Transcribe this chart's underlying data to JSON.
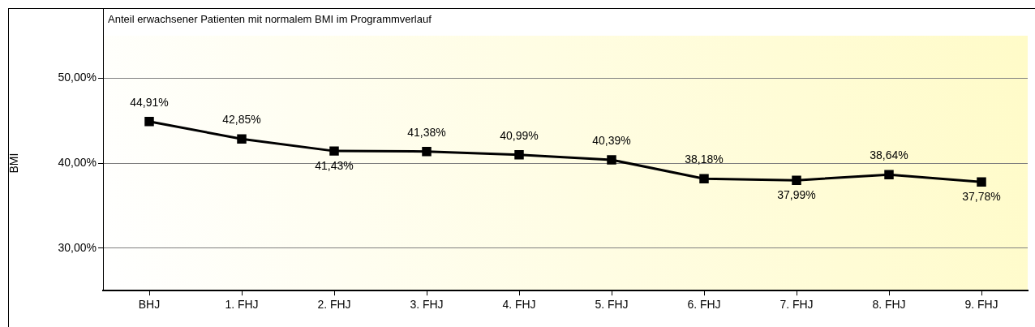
{
  "chart_data": {
    "type": "line",
    "title": "Anteil erwachsener Patienten mit normalem BMI im Programmverlauf",
    "ylabel": "BMI",
    "categories": [
      "BHJ",
      "1. FHJ",
      "2. FHJ",
      "3. FHJ",
      "4. FHJ",
      "5. FHJ",
      "6. FHJ",
      "7. FHJ",
      "8. FHJ",
      "9. FHJ"
    ],
    "series": [
      {
        "color": "#000000",
        "values": [
          44.91,
          42.85,
          41.43,
          41.38,
          40.99,
          40.39,
          38.18,
          37.99,
          38.64,
          37.78
        ],
        "value_labels": [
          "44,91%",
          "42,85%",
          "41,43%",
          "41,38%",
          "40,99%",
          "40,39%",
          "38,18%",
          "37,99%",
          "38,64%",
          "37,78%"
        ]
      }
    ],
    "ylim": [
      25,
      55
    ],
    "yticks": [
      {
        "value": 30,
        "label": "30,00%"
      },
      {
        "value": 40,
        "label": "40,00%"
      },
      {
        "value": 50,
        "label": "50,00%"
      }
    ],
    "grid": "y",
    "legend": false,
    "marker": "square",
    "line_style": "solid"
  }
}
